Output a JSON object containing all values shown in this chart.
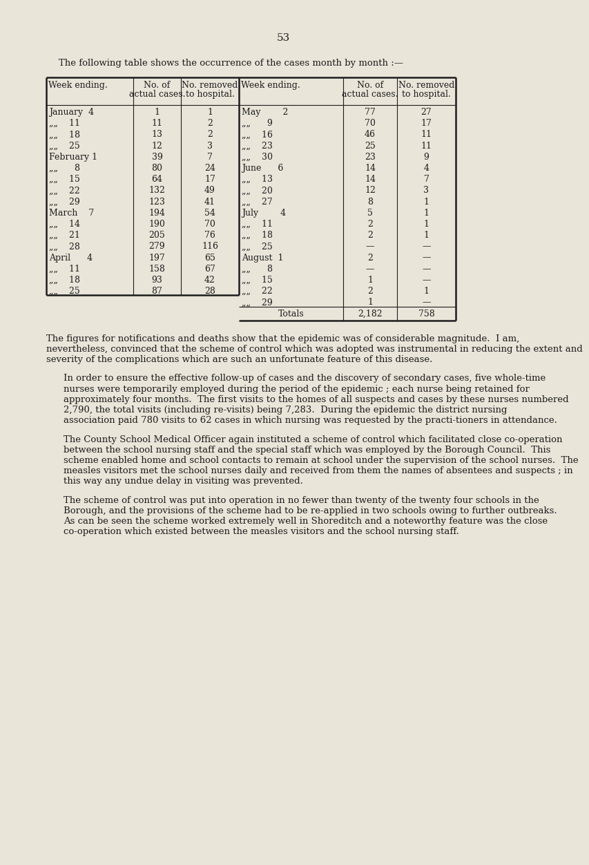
{
  "page_number": "53",
  "intro_text": "The following table shows the occurrence of the cases month by month :—",
  "left_rows": [
    [
      "January  4",
      "1",
      "1"
    ],
    [
      "„„    11",
      "11",
      "2"
    ],
    [
      "„„    18",
      "13",
      "2"
    ],
    [
      "„„    25",
      "12",
      "3"
    ],
    [
      "February 1",
      "39",
      "7"
    ],
    [
      "„„      8",
      "80",
      "24"
    ],
    [
      "„„    15",
      "64",
      "17"
    ],
    [
      "„„    22",
      "132",
      "49"
    ],
    [
      "„„    29",
      "123",
      "41"
    ],
    [
      "March    7",
      "194",
      "54"
    ],
    [
      "„„    14",
      "190",
      "70"
    ],
    [
      "„„    21",
      "205",
      "76"
    ],
    [
      "„„    28",
      "279",
      "116"
    ],
    [
      "April      4",
      "197",
      "65"
    ],
    [
      "„„    11",
      "158",
      "67"
    ],
    [
      "„„    18",
      "93",
      "42"
    ],
    [
      "„„    25",
      "87",
      "28"
    ]
  ],
  "right_rows": [
    [
      "May        2",
      "77",
      "27"
    ],
    [
      "„„      9",
      "70",
      "17"
    ],
    [
      "„„    16",
      "46",
      "11"
    ],
    [
      "„„    23",
      "25",
      "11"
    ],
    [
      "„„    30",
      "23",
      "9"
    ],
    [
      "June      6",
      "14",
      "4"
    ],
    [
      "„„    13",
      "14",
      "7"
    ],
    [
      "„„    20",
      "12",
      "3"
    ],
    [
      "„„    27",
      "8",
      "1"
    ],
    [
      "July        4",
      "5",
      "1"
    ],
    [
      "„„    11",
      "2",
      "1"
    ],
    [
      "„„    18",
      "2",
      "1"
    ],
    [
      "„„    25",
      "—",
      "—"
    ],
    [
      "August  1",
      "2",
      "—"
    ],
    [
      "„„      8",
      "—",
      "—"
    ],
    [
      "„„    15",
      "1",
      "—"
    ],
    [
      "„„    22",
      "2",
      "1"
    ],
    [
      "„„    29",
      "1",
      "—"
    ]
  ],
  "totals_label": "Totals",
  "totals_cases": "2,182",
  "totals_hospital": "758",
  "para1": "The figures for notifications and deaths show that the epidemic was of considerable magnitude.  I am, nevertheless, convinced that the scheme of control which was adopted was instrumental in reducing the extent and severity of the complications which are such an unfortunate feature of this disease.",
  "para2": "In order to ensure the effective follow-up of cases and the discovery of secondary cases, five whole-time nurses were temporarily employed during the period of the epidemic ; each nurse being retained for approximately four months.  The first visits to the homes of all suspects and cases by these nurses numbered 2,790, the total visits (including re-visits) being 7,283.  During the epidemic the district nursing association paid 780 visits to 62 cases in which nursing was requested by the practi-tioners in attendance.",
  "para3": "The County School Medical Officer again instituted a scheme of control which facilitated close co-operation between the school nursing staff and the special staff which was employed by the Borough Council.  This scheme enabled home and school contacts to remain at school under the supervision of the school nurses.  The measles visitors met the school nurses daily and received from them the names of absentees and suspects ; in this way any undue delay in visiting was prevented.",
  "para4": "The scheme of control was put into operation in no fewer than twenty of the twenty four schools in the Borough, and the provisions of the scheme had to be re-applied in two schools owing to further outbreaks.  As can be seen the scheme worked extremely well in Shoreditch and a noteworthy feature was the close co-operation which existed between the measles visitors and the school nursing staff.",
  "bg_color": "#e9e5d9",
  "text_color": "#1c1c1c"
}
